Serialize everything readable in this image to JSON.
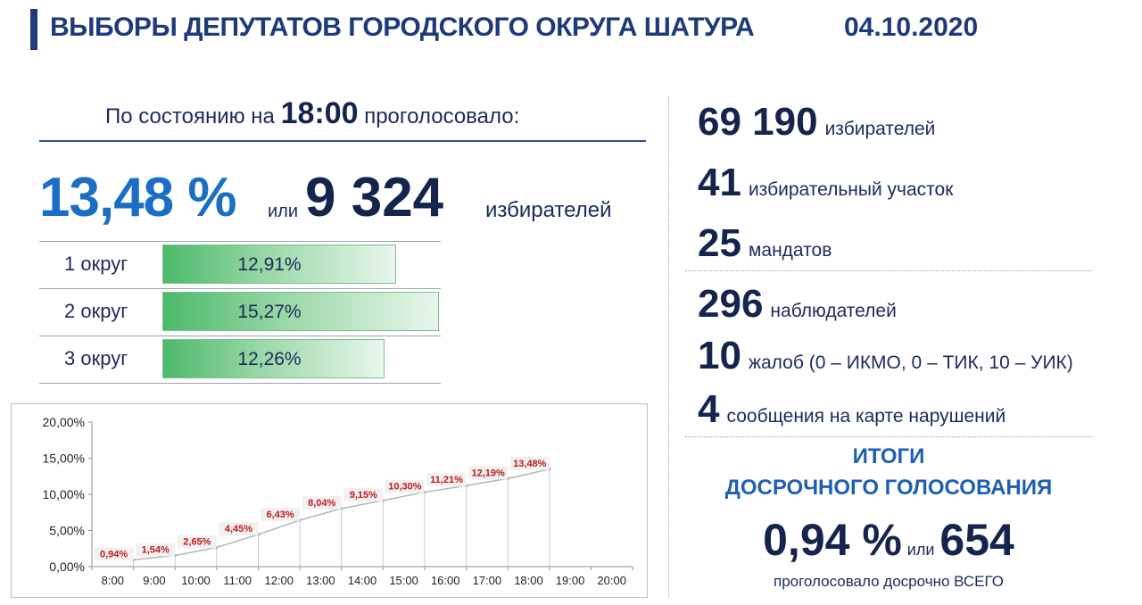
{
  "header": {
    "title": "ВЫБОРЫ ДЕПУТАТОВ ГОРОДСКОГО ОКРУГА ШАТУРА",
    "date": "04.10.2020"
  },
  "turnout": {
    "prefix": "По состоянию на",
    "time": "18:00",
    "suffix": "проголосовало:",
    "percent": "13,48 %",
    "or": "или",
    "count": "9 324",
    "unit": "избирателей"
  },
  "okrugs": [
    {
      "label": "1 округ",
      "value": "12,91%",
      "pct": 12.91
    },
    {
      "label": "2 округ",
      "value": "15,27%",
      "pct": 15.27
    },
    {
      "label": "3 округ",
      "value": "12,26%",
      "pct": 12.26
    }
  ],
  "stats": [
    {
      "number": "69 190",
      "text": "избирателей"
    },
    {
      "number": "41",
      "text": "избирательный участок"
    },
    {
      "number": "25",
      "text": "мандатов"
    },
    {
      "number": "296",
      "text": "наблюдателей"
    },
    {
      "number": "10",
      "text": "жалоб (0 – ИКМО, 0 – ТИК, 10 – УИК)"
    },
    {
      "number": "4",
      "text": "сообщения на карте нарушений"
    }
  ],
  "early": {
    "title_line1": "ИТОГИ",
    "title_line2": "ДОСРОЧНОГО ГОЛОСОВАНИЯ",
    "percent": "0,94 %",
    "or": "или",
    "count": "654",
    "caption": "проголосовало досрочно ВСЕГО"
  },
  "chart_data": {
    "type": "line",
    "categories": [
      "8:00",
      "9:00",
      "10:00",
      "11:00",
      "12:00",
      "13:00",
      "14:00",
      "15:00",
      "16:00",
      "17:00",
      "18:00",
      "19:00",
      "20:00"
    ],
    "values": [
      0.94,
      1.54,
      2.65,
      4.45,
      6.43,
      8.04,
      9.15,
      10.3,
      11.21,
      12.19,
      13.48
    ],
    "labels": [
      "0,94%",
      "1,54%",
      "2,65%",
      "4,45%",
      "6,43%",
      "8,04%",
      "9,15%",
      "10,30%",
      "11,21%",
      "12,19%",
      "13,48%"
    ],
    "yticks": [
      "0,00%",
      "5,00%",
      "10,00%",
      "15,00%",
      "20,00%"
    ],
    "ylim": [
      0,
      20
    ],
    "line_color": "#b0b6bd",
    "label_color": "#c0181e"
  }
}
